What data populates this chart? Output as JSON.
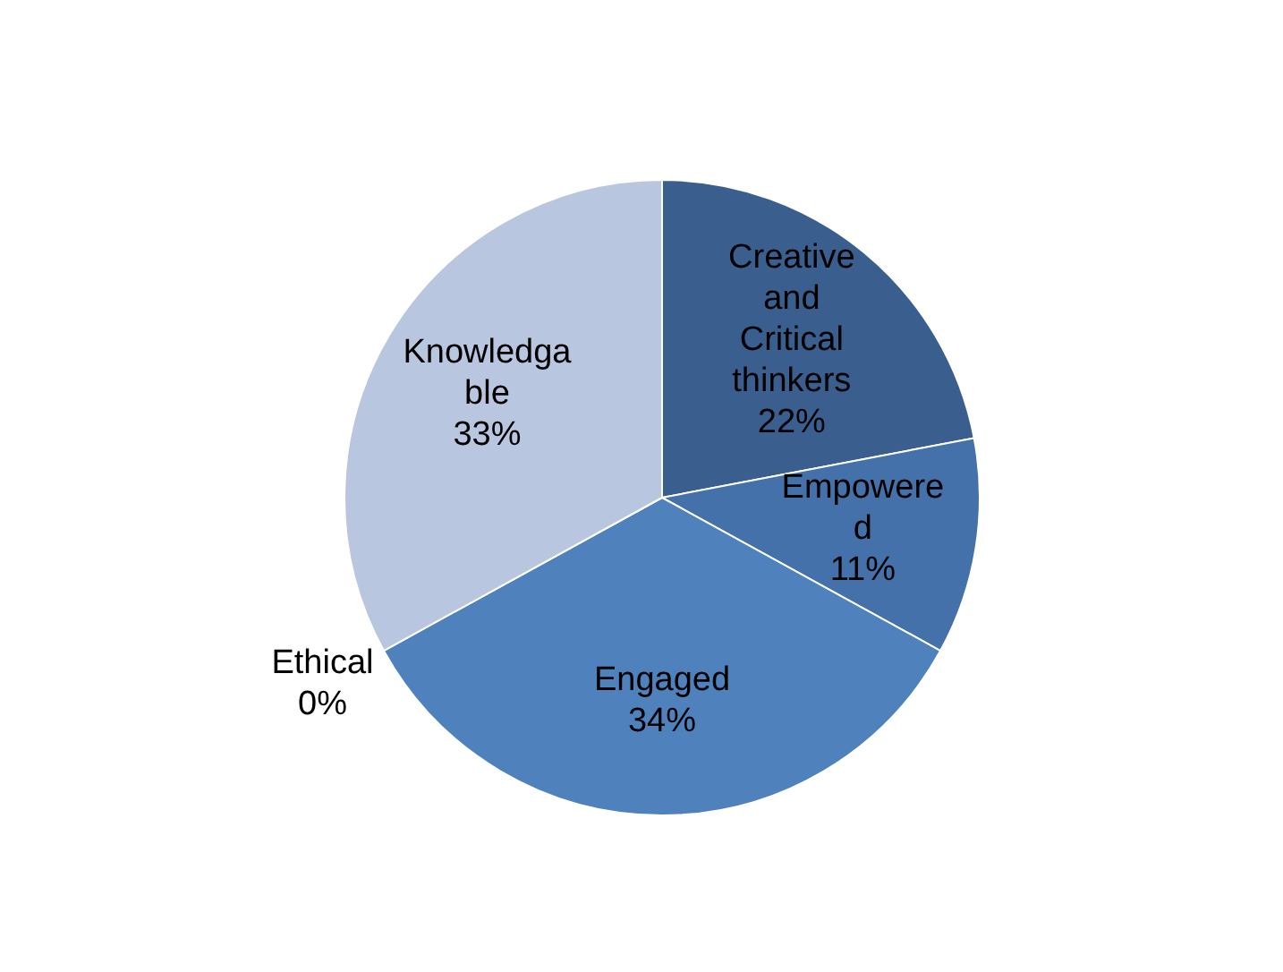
{
  "chart_data": {
    "type": "pie",
    "categories": [
      "Creative and Critical thinkers",
      "Empowered",
      "Engaged",
      "Ethical",
      "Knowledgable"
    ],
    "values": [
      22,
      11,
      34,
      0,
      33
    ],
    "colors": [
      "#3a5f8f",
      "#4471a9",
      "#4f81bd",
      "#4f81bd",
      "#b9c6df"
    ],
    "value_labels": [
      "22%",
      "11%",
      "34%",
      "0%",
      "33%"
    ],
    "legend": false
  }
}
